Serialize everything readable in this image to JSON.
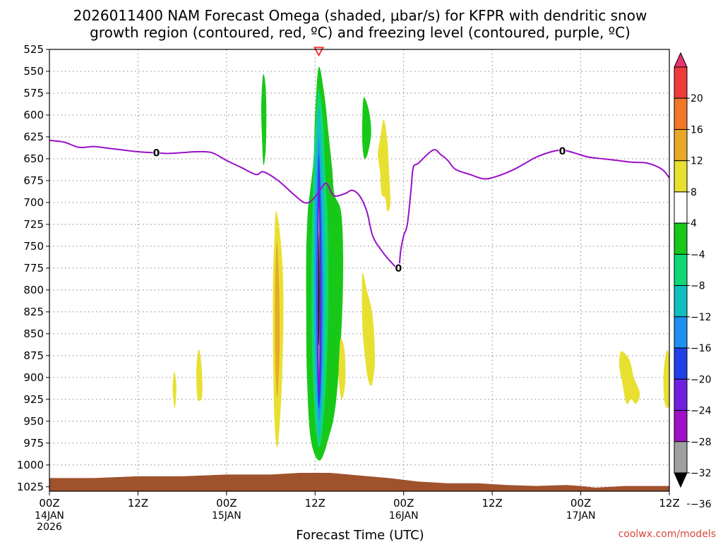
{
  "chart_data": {
    "type": "heatmap",
    "title_lines": [
      "2026011400 NAM Forecast Omega (shaded, μbar/s) for KFPR with dendritic snow",
      "growth region (contoured, red, ºC) and freezing level (contoured, purple, ºC)"
    ],
    "xlabel": "Forecast Time (UTC)",
    "ylabel": "",
    "credit": "coolwx.com/models",
    "x_unit": "hours after 2026011400",
    "xlim": [
      0,
      84
    ],
    "ylim": [
      1030,
      525
    ],
    "x_ticks": [
      {
        "h": 0,
        "label": "00Z",
        "date": "14JAN",
        "year": "2026"
      },
      {
        "h": 12,
        "label": "12Z",
        "date": "",
        "year": ""
      },
      {
        "h": 24,
        "label": "00Z",
        "date": "15JAN",
        "year": ""
      },
      {
        "h": 36,
        "label": "12Z",
        "date": "",
        "year": ""
      },
      {
        "h": 48,
        "label": "00Z",
        "date": "16JAN",
        "year": ""
      },
      {
        "h": 60,
        "label": "12Z",
        "date": "",
        "year": ""
      },
      {
        "h": 72,
        "label": "00Z",
        "date": "17JAN",
        "year": ""
      },
      {
        "h": 84,
        "label": "12Z",
        "date": "",
        "year": ""
      }
    ],
    "y_ticks": [
      525,
      550,
      575,
      600,
      625,
      650,
      675,
      700,
      725,
      750,
      775,
      800,
      825,
      850,
      875,
      900,
      925,
      950,
      975,
      1000,
      1025
    ],
    "grid": true,
    "colorbar": {
      "labels": [
        "20",
        "16",
        "12",
        "8",
        "4",
        "−4",
        "−8",
        "−12",
        "−16",
        "−20",
        "−24",
        "−28",
        "−32",
        "−36"
      ],
      "colors": [
        "#e8346e",
        "#f03a3a",
        "#f07828",
        "#e8a828",
        "#e8e030",
        "#ffffff",
        "#18c818",
        "#10d878",
        "#10c0c0",
        "#2090f0",
        "#2040e8",
        "#7020e0",
        "#a010c8",
        "#a0a0a0",
        "#000000"
      ]
    },
    "freezing_level": {
      "name": "0",
      "color": "#9a10c8",
      "points": [
        [
          0,
          629
        ],
        [
          2,
          631
        ],
        [
          4,
          637
        ],
        [
          6,
          636
        ],
        [
          8,
          638
        ],
        [
          10,
          640
        ],
        [
          12,
          642
        ],
        [
          14,
          643
        ],
        [
          16,
          644
        ],
        [
          18,
          643
        ],
        [
          20,
          642
        ],
        [
          22,
          643
        ],
        [
          24,
          652
        ],
        [
          26,
          660
        ],
        [
          28,
          668
        ],
        [
          29,
          665
        ],
        [
          31,
          675
        ],
        [
          33,
          690
        ],
        [
          34.5,
          700
        ],
        [
          35.5,
          698
        ],
        [
          36.5,
          688
        ],
        [
          37.5,
          678
        ],
        [
          38.5,
          692
        ],
        [
          40,
          690
        ],
        [
          41,
          686
        ],
        [
          42,
          692
        ],
        [
          43,
          710
        ],
        [
          43.8,
          738
        ],
        [
          45,
          755
        ],
        [
          46.5,
          770
        ],
        [
          47.3,
          775
        ],
        [
          47.6,
          755
        ],
        [
          48,
          738
        ],
        [
          48.5,
          725
        ],
        [
          49,
          685
        ],
        [
          49.3,
          660
        ],
        [
          50,
          655
        ],
        [
          52,
          640
        ],
        [
          53,
          645
        ],
        [
          54,
          652
        ],
        [
          55,
          662
        ],
        [
          57,
          668
        ],
        [
          59,
          673
        ],
        [
          61,
          669
        ],
        [
          63,
          662
        ],
        [
          64.5,
          655
        ],
        [
          66,
          648
        ],
        [
          68,
          642
        ],
        [
          69.5,
          640
        ],
        [
          71,
          643
        ],
        [
          73,
          648
        ],
        [
          75,
          650
        ],
        [
          77,
          652
        ],
        [
          79,
          654
        ],
        [
          81,
          655
        ],
        [
          83,
          662
        ],
        [
          84,
          672
        ]
      ],
      "labels": [
        {
          "x": 14.5,
          "y": 643,
          "text": "0"
        },
        {
          "x": 47.3,
          "y": 775,
          "text": "0"
        },
        {
          "x": 69.5,
          "y": 641,
          "text": "0"
        }
      ]
    },
    "dgz_marker": {
      "x": 36.5,
      "y": 526,
      "color": "#f03a3a"
    },
    "omega_areas": [
      {
        "value": -6,
        "color": "#18c818",
        "points": [
          [
            29,
            553
          ],
          [
            29.3,
            568
          ],
          [
            29.4,
            605
          ],
          [
            29.3,
            640
          ],
          [
            29,
            657
          ],
          [
            28.8,
            625
          ],
          [
            28.7,
            595
          ],
          [
            28.8,
            568
          ]
        ]
      },
      {
        "value": -6,
        "color": "#18c818",
        "points": [
          [
            42.6,
            580
          ],
          [
            43.3,
            595
          ],
          [
            43.6,
            620
          ],
          [
            43.2,
            642
          ],
          [
            42.7,
            650
          ],
          [
            42.4,
            632
          ],
          [
            42.4,
            605
          ]
        ]
      },
      {
        "value": -6,
        "color": "#18c818",
        "points": [
          [
            36.5,
            545
          ],
          [
            37.3,
            580
          ],
          [
            37.8,
            620
          ],
          [
            38.3,
            660
          ],
          [
            38.6,
            690
          ],
          [
            39.5,
            710
          ],
          [
            39.8,
            760
          ],
          [
            39.6,
            840
          ],
          [
            38.8,
            930
          ],
          [
            37.8,
            970
          ],
          [
            36.6,
            995
          ],
          [
            35.4,
            970
          ],
          [
            34.9,
            900
          ],
          [
            34.8,
            820
          ],
          [
            34.8,
            760
          ],
          [
            35,
            712
          ],
          [
            35.3,
            688
          ],
          [
            35.8,
            650
          ],
          [
            36,
            600
          ]
        ]
      },
      {
        "value": -10,
        "color": "#10d878",
        "points": [
          [
            36.5,
            570
          ],
          [
            37.1,
            610
          ],
          [
            37.4,
            670
          ],
          [
            37.7,
            720
          ],
          [
            37.8,
            800
          ],
          [
            37.6,
            880
          ],
          [
            37.2,
            940
          ],
          [
            36.6,
            980
          ],
          [
            36,
            950
          ],
          [
            35.6,
            870
          ],
          [
            35.5,
            790
          ],
          [
            35.6,
            720
          ],
          [
            35.8,
            660
          ],
          [
            36.1,
            610
          ]
        ]
      },
      {
        "value": -14,
        "color": "#10c0c0",
        "points": [
          [
            36.5,
            590
          ],
          [
            37,
            650
          ],
          [
            37.3,
            730
          ],
          [
            37.3,
            830
          ],
          [
            37.1,
            910
          ],
          [
            36.6,
            970
          ],
          [
            36.1,
            930
          ],
          [
            35.8,
            840
          ],
          [
            35.8,
            750
          ],
          [
            36,
            660
          ]
        ]
      },
      {
        "value": -18,
        "color": "#2090f0",
        "points": [
          [
            36.5,
            625
          ],
          [
            36.9,
            700
          ],
          [
            37.1,
            790
          ],
          [
            37,
            880
          ],
          [
            36.6,
            950
          ],
          [
            36.2,
            900
          ],
          [
            36,
            800
          ],
          [
            36.1,
            710
          ]
        ]
      },
      {
        "value": -22,
        "color": "#2040e8",
        "points": [
          [
            36.5,
            645
          ],
          [
            36.8,
            720
          ],
          [
            36.9,
            820
          ],
          [
            36.8,
            900
          ],
          [
            36.5,
            935
          ],
          [
            36.3,
            890
          ],
          [
            36.2,
            800
          ],
          [
            36.3,
            720
          ]
        ]
      },
      {
        "value": -26,
        "color": "#7020e0",
        "points": [
          [
            36.5,
            665
          ],
          [
            36.7,
            740
          ],
          [
            36.8,
            830
          ],
          [
            36.7,
            900
          ],
          [
            36.5,
            920
          ],
          [
            36.3,
            880
          ],
          [
            36.3,
            790
          ],
          [
            36.4,
            720
          ]
        ]
      },
      {
        "value": -30,
        "color": "#a010c8",
        "points": [
          [
            36.5,
            690
          ],
          [
            36.7,
            780
          ],
          [
            36.6,
            880
          ],
          [
            36.5,
            905
          ],
          [
            36.4,
            860
          ],
          [
            36.4,
            760
          ]
        ]
      },
      {
        "value": -34,
        "color": "#a0a0a0",
        "points": [
          [
            36.5,
            705
          ],
          [
            36.65,
            800
          ],
          [
            36.55,
            890
          ],
          [
            36.45,
            870
          ],
          [
            36.4,
            780
          ]
        ]
      },
      {
        "value": -38,
        "color": "#000000",
        "points": [
          [
            36.5,
            735
          ],
          [
            36.6,
            800
          ],
          [
            36.55,
            860
          ],
          [
            36.45,
            850
          ],
          [
            36.45,
            780
          ]
        ]
      },
      {
        "value": 6,
        "color": "#e8e030",
        "points": [
          [
            30.7,
            710
          ],
          [
            31.3,
            740
          ],
          [
            31.7,
            800
          ],
          [
            31.6,
            880
          ],
          [
            31.3,
            940
          ],
          [
            30.9,
            980
          ],
          [
            30.5,
            950
          ],
          [
            30.3,
            870
          ],
          [
            30.3,
            790
          ],
          [
            30.5,
            740
          ]
        ]
      },
      {
        "value": 10,
        "color": "#e8a828",
        "points": [
          [
            30.8,
            745
          ],
          [
            31.1,
            790
          ],
          [
            31.2,
            860
          ],
          [
            31,
            910
          ],
          [
            30.8,
            920
          ],
          [
            30.6,
            870
          ],
          [
            30.6,
            800
          ]
        ]
      },
      {
        "value": 6,
        "color": "#e8e030",
        "points": [
          [
            42.4,
            782
          ],
          [
            43,
            800
          ],
          [
            43.8,
            830
          ],
          [
            44.1,
            880
          ],
          [
            43.7,
            908
          ],
          [
            43.2,
            903
          ],
          [
            42.8,
            880
          ],
          [
            42.4,
            840
          ]
        ]
      },
      {
        "value": 6,
        "color": "#e8e030",
        "points": [
          [
            45.3,
            605
          ],
          [
            45.8,
            630
          ],
          [
            46,
            660
          ],
          [
            46.2,
            700
          ],
          [
            45.8,
            710
          ],
          [
            45.5,
            695
          ],
          [
            45,
            690
          ],
          [
            44.8,
            665
          ],
          [
            44.5,
            645
          ],
          [
            44.8,
            628
          ]
        ]
      },
      {
        "value": 6,
        "color": "#e8e030",
        "points": [
          [
            39.5,
            855
          ],
          [
            40,
            870
          ],
          [
            40.1,
            905
          ],
          [
            39.6,
            925
          ],
          [
            39.2,
            900
          ],
          [
            39.3,
            870
          ]
        ]
      },
      {
        "value": 6,
        "color": "#e8e030",
        "points": [
          [
            20.2,
            868
          ],
          [
            20.6,
            885
          ],
          [
            20.7,
            920
          ],
          [
            20.1,
            925
          ],
          [
            19.9,
            895
          ]
        ]
      },
      {
        "value": 6,
        "color": "#e8e030",
        "points": [
          [
            16.9,
            893
          ],
          [
            17.2,
            910
          ],
          [
            17,
            935
          ],
          [
            16.7,
            915
          ]
        ]
      },
      {
        "value": 6,
        "color": "#e8e030",
        "points": [
          [
            77.5,
            870
          ],
          [
            78.6,
            880
          ],
          [
            79.2,
            900
          ],
          [
            80,
            918
          ],
          [
            79.5,
            930
          ],
          [
            78.8,
            925
          ],
          [
            78.2,
            930
          ],
          [
            77.6,
            905
          ],
          [
            77.2,
            885
          ]
        ]
      },
      {
        "value": 6,
        "color": "#e8e030",
        "points": [
          [
            83.6,
            870
          ],
          [
            84,
            880
          ],
          [
            84,
            930
          ],
          [
            83.4,
            930
          ],
          [
            83.2,
            900
          ]
        ]
      }
    ],
    "terrain": {
      "color": "#a0522d",
      "points": [
        [
          0,
          1015
        ],
        [
          6,
          1015
        ],
        [
          12,
          1013
        ],
        [
          18,
          1013
        ],
        [
          24,
          1011
        ],
        [
          30,
          1011
        ],
        [
          34,
          1009
        ],
        [
          38,
          1009
        ],
        [
          42,
          1012
        ],
        [
          46,
          1015
        ],
        [
          50,
          1019
        ],
        [
          54,
          1021
        ],
        [
          58,
          1021
        ],
        [
          62,
          1023
        ],
        [
          66,
          1024
        ],
        [
          70,
          1023
        ],
        [
          72,
          1024
        ],
        [
          74,
          1026
        ],
        [
          78,
          1024
        ],
        [
          84,
          1024
        ]
      ]
    }
  }
}
